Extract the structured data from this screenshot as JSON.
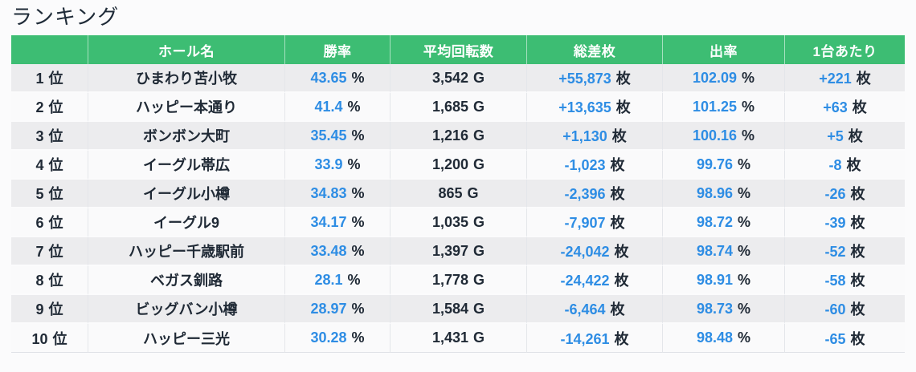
{
  "page": {
    "title": "ランキング"
  },
  "colors": {
    "page_bg": "#fbfbfc",
    "header_bg": "#3dbd73",
    "header_text": "#ffffff",
    "text": "#202a36",
    "value_accent": "#2e8de4",
    "row_odd_bg": "#ececee",
    "row_even_bg": "#fafafb",
    "col_border": "#e4e6ea",
    "table_bottom_border": "#dfe1e6"
  },
  "table": {
    "headers": [
      "",
      "ホール名",
      "勝率",
      "平均回転数",
      "総差枚",
      "出率",
      "1台あたり"
    ],
    "units": {
      "rank": "位",
      "win_rate": "%",
      "avg_spins": "G",
      "total_diff": "枚",
      "payout": "%",
      "per_machine": "枚"
    },
    "rows": [
      {
        "rank": "1",
        "hall": "ひまわり苫小牧",
        "win_rate": "43.65",
        "avg_spins": "3,542",
        "total_diff": "+55,873",
        "payout": "102.09",
        "per_machine": "+221"
      },
      {
        "rank": "2",
        "hall": "ハッピー本通り",
        "win_rate": "41.4",
        "avg_spins": "1,685",
        "total_diff": "+13,635",
        "payout": "101.25",
        "per_machine": "+63"
      },
      {
        "rank": "3",
        "hall": "ボンボン大町",
        "win_rate": "35.45",
        "avg_spins": "1,216",
        "total_diff": "+1,130",
        "payout": "100.16",
        "per_machine": "+5"
      },
      {
        "rank": "4",
        "hall": "イーグル帯広",
        "win_rate": "33.9",
        "avg_spins": "1,200",
        "total_diff": "-1,023",
        "payout": "99.76",
        "per_machine": "-8"
      },
      {
        "rank": "5",
        "hall": "イーグル小樽",
        "win_rate": "34.83",
        "avg_spins": "865",
        "total_diff": "-2,396",
        "payout": "98.96",
        "per_machine": "-26"
      },
      {
        "rank": "6",
        "hall": "イーグル9",
        "win_rate": "34.17",
        "avg_spins": "1,035",
        "total_diff": "-7,907",
        "payout": "98.72",
        "per_machine": "-39"
      },
      {
        "rank": "7",
        "hall": "ハッピー千歳駅前",
        "win_rate": "33.48",
        "avg_spins": "1,397",
        "total_diff": "-24,042",
        "payout": "98.74",
        "per_machine": "-52"
      },
      {
        "rank": "8",
        "hall": "ベガス釧路",
        "win_rate": "28.1",
        "avg_spins": "1,778",
        "total_diff": "-24,422",
        "payout": "98.91",
        "per_machine": "-58"
      },
      {
        "rank": "9",
        "hall": "ビッグバン小樽",
        "win_rate": "28.97",
        "avg_spins": "1,584",
        "total_diff": "-6,464",
        "payout": "98.73",
        "per_machine": "-60"
      },
      {
        "rank": "10",
        "hall": "ハッピー三光",
        "win_rate": "30.28",
        "avg_spins": "1,431",
        "total_diff": "-14,261",
        "payout": "98.48",
        "per_machine": "-65"
      }
    ]
  }
}
